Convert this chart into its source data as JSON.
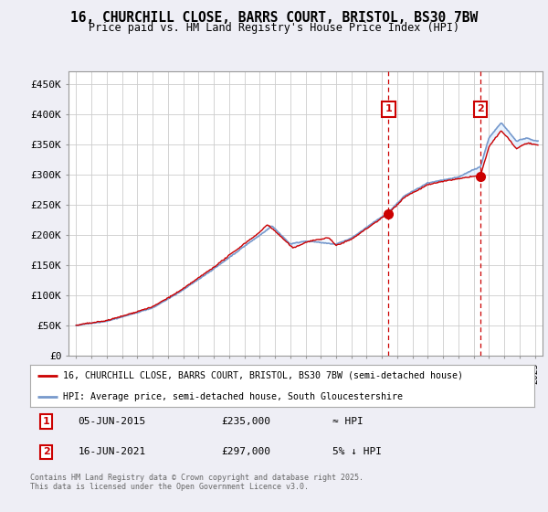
{
  "title": "16, CHURCHILL CLOSE, BARRS COURT, BRISTOL, BS30 7BW",
  "subtitle": "Price paid vs. HM Land Registry's House Price Index (HPI)",
  "red_line_label": "16, CHURCHILL CLOSE, BARRS COURT, BRISTOL, BS30 7BW (semi-detached house)",
  "blue_line_label": "HPI: Average price, semi-detached house, South Gloucestershire",
  "annotation1": {
    "label": "1",
    "date": "05-JUN-2015",
    "price": "£235,000",
    "hpi_note": "≈ HPI",
    "year": 2015.43
  },
  "annotation2": {
    "label": "2",
    "date": "16-JUN-2021",
    "price": "£297,000",
    "hpi_note": "5% ↓ HPI",
    "year": 2021.45
  },
  "footer": "Contains HM Land Registry data © Crown copyright and database right 2025.\nThis data is licensed under the Open Government Licence v3.0.",
  "ylim": [
    0,
    470000
  ],
  "yticks": [
    0,
    50000,
    100000,
    150000,
    200000,
    250000,
    300000,
    350000,
    400000,
    450000
  ],
  "ytick_labels": [
    "£0",
    "£50K",
    "£100K",
    "£150K",
    "£200K",
    "£250K",
    "£300K",
    "£350K",
    "£400K",
    "£450K"
  ],
  "xlim": [
    1994.5,
    2025.5
  ],
  "background_color": "#eeeef5",
  "plot_bg_color": "#ffffff",
  "red_color": "#cc0000",
  "blue_color": "#7799cc",
  "fill_color": "#ddeeff",
  "grid_color": "#cccccc",
  "annotation_box_color": "#cc0000",
  "dashed_color": "#cc0000"
}
